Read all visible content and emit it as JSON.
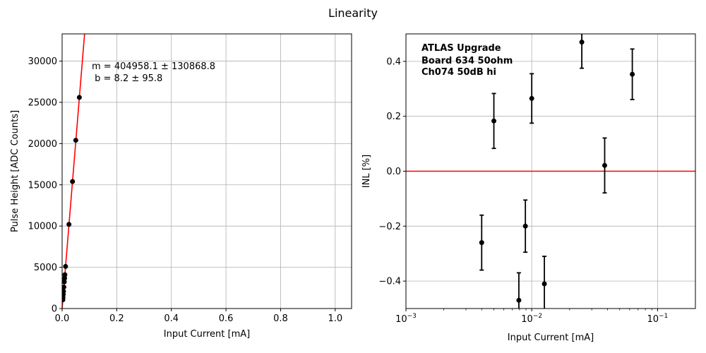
{
  "figure": {
    "title": "Linearity"
  },
  "chart_data": [
    {
      "type": "scatter",
      "title": "",
      "xlabel": "Input Current [mA]",
      "ylabel": "Pulse Height [ADC Counts]",
      "xlim": [
        0,
        1.06
      ],
      "ylim": [
        0,
        33300
      ],
      "xticks": [
        0.0,
        0.2,
        0.4,
        0.6,
        0.8,
        1.0
      ],
      "xtick_labels": [
        "0.0",
        "0.2",
        "0.4",
        "0.6",
        "0.8",
        "1.0"
      ],
      "yticks": [
        0,
        5000,
        10000,
        15000,
        20000,
        25000,
        30000
      ],
      "ytick_labels": [
        "0",
        "5000",
        "10000",
        "15000",
        "20000",
        "25000",
        "30000"
      ],
      "grid": true,
      "points_color": "#000000",
      "fit_color": "#ff0000",
      "points": {
        "x": [
          0.0025,
          0.0032,
          0.004,
          0.005,
          0.0063,
          0.0079,
          0.0091,
          0.01,
          0.0126,
          0.025,
          0.038,
          0.05,
          0.063
        ],
        "y": [
          1060,
          1340,
          1700,
          2080,
          2600,
          3230,
          3680,
          4100,
          5100,
          10200,
          15400,
          20400,
          25600
        ]
      },
      "fit": {
        "slope": 404958.1,
        "intercept": 8.2
      },
      "annotation": {
        "line1": "m = 404958.1 ± 130868.8",
        "line2": " b = 8.2 ± 95.8"
      }
    },
    {
      "type": "scatter",
      "title": "",
      "xlabel": "Input Current [mA]",
      "ylabel": "INL [%]",
      "xscale": "log",
      "xlim": [
        0.001,
        0.2
      ],
      "ylim": [
        -0.5,
        0.5
      ],
      "xticks": [
        0.001,
        0.01,
        0.1
      ],
      "xtick_labels": [
        [
          "10",
          "−3"
        ],
        [
          "10",
          "−2"
        ],
        [
          "10",
          "−1"
        ]
      ],
      "yticks": [
        -0.4,
        -0.2,
        0.0,
        0.2,
        0.4
      ],
      "ytick_labels": [
        "−0.4",
        "−0.2",
        "0.0",
        "0.2",
        "0.4"
      ],
      "grid": true,
      "points_color": "#000000",
      "reference_line": {
        "y": 0.0,
        "color": "#ff0000"
      },
      "points": {
        "x": [
          0.004,
          0.005,
          0.0079,
          0.0089,
          0.01,
          0.0126,
          0.025,
          0.038,
          0.063
        ],
        "y": [
          -0.26,
          0.183,
          -0.47,
          -0.2,
          0.265,
          -0.41,
          0.47,
          0.021,
          0.353
        ],
        "yerr": [
          0.1,
          0.1,
          0.1,
          0.095,
          0.09,
          0.1,
          0.095,
          0.1,
          0.092
        ]
      },
      "annotation": {
        "line1": "ATLAS Upgrade",
        "line2": "Board 634 50ohm",
        "line3": "Ch074 50dB hi"
      }
    }
  ]
}
